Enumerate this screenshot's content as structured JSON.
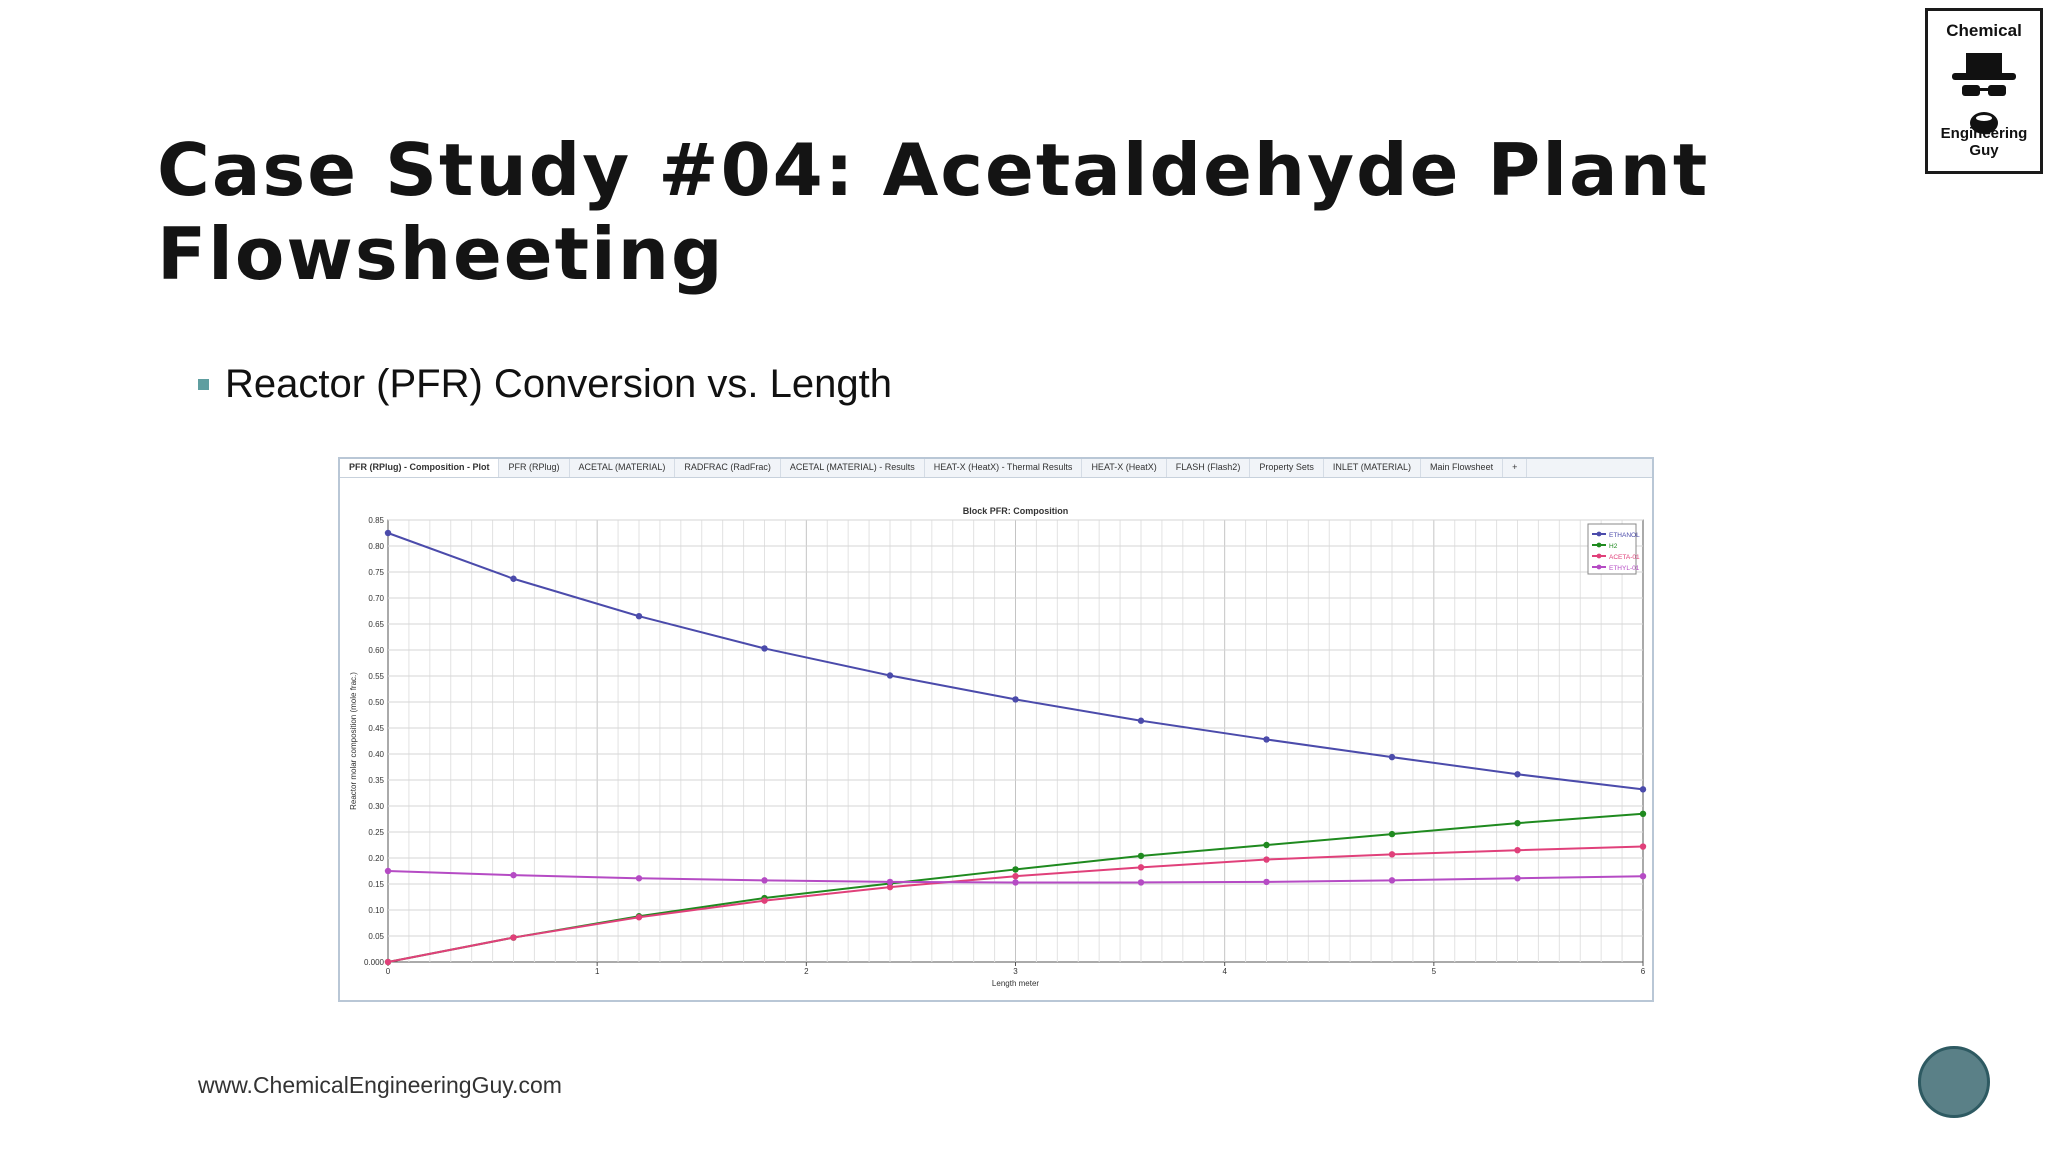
{
  "slide": {
    "title_line1": "Case Study #04: Acetaldehyde Plant",
    "title_line2": "Flowsheeting",
    "bullet": "Reactor (PFR) Conversion vs. Length",
    "footer": "www.ChemicalEngineeringGuy.com",
    "logo_top": "Chemical",
    "logo_bottom": "Engineering Guy",
    "page_number": ""
  },
  "tabs": [
    "PFR (RPlug) - Composition - Plot",
    "PFR (RPlug)",
    "ACETAL (MATERIAL)",
    "RADFRAC (RadFrac)",
    "ACETAL (MATERIAL) - Results",
    "HEAT-X (HeatX) - Thermal Results",
    "HEAT-X (HeatX)",
    "FLASH (Flash2)",
    "Property Sets",
    "INLET (MATERIAL)",
    "Main Flowsheet",
    "+"
  ],
  "chart_data": {
    "type": "line",
    "title": "Block PFR: Composition",
    "xlabel": "Length meter",
    "ylabel": "Reactor molar composition (mole frac.)",
    "xlim": [
      0,
      6
    ],
    "ylim": [
      0,
      0.85
    ],
    "xticks": [
      "0",
      "1",
      "2",
      "3",
      "4",
      "5",
      "6"
    ],
    "yticks": [
      "0.000",
      "0.05",
      "0.10",
      "0.15",
      "0.20",
      "0.25",
      "0.30",
      "0.35",
      "0.40",
      "0.45",
      "0.50",
      "0.55",
      "0.60",
      "0.65",
      "0.70",
      "0.75",
      "0.80",
      "0.85"
    ],
    "grid": true,
    "legend_position": "top-right",
    "x": [
      0,
      0.6,
      1.2,
      1.8,
      2.4,
      3.0,
      3.6,
      4.2,
      4.8,
      5.4,
      6.0
    ],
    "series": [
      {
        "name": "ETHANOL",
        "color": "#4b4bab",
        "values": [
          0.825,
          0.737,
          0.665,
          0.603,
          0.551,
          0.505,
          0.464,
          0.428,
          0.394,
          0.361,
          0.332
        ]
      },
      {
        "name": "H2",
        "color": "#1f8a1f",
        "values": [
          0.0,
          0.047,
          0.088,
          0.123,
          0.151,
          0.178,
          0.204,
          0.225,
          0.246,
          0.267,
          0.285
        ]
      },
      {
        "name": "ACETA-01",
        "color": "#e0407a",
        "values": [
          0.0,
          0.047,
          0.086,
          0.118,
          0.144,
          0.165,
          0.182,
          0.197,
          0.207,
          0.215,
          0.222
        ]
      },
      {
        "name": "ETHYL-01",
        "color": "#b54bc4",
        "values": [
          0.175,
          0.167,
          0.161,
          0.157,
          0.154,
          0.153,
          0.153,
          0.154,
          0.157,
          0.161,
          0.165
        ]
      }
    ]
  }
}
